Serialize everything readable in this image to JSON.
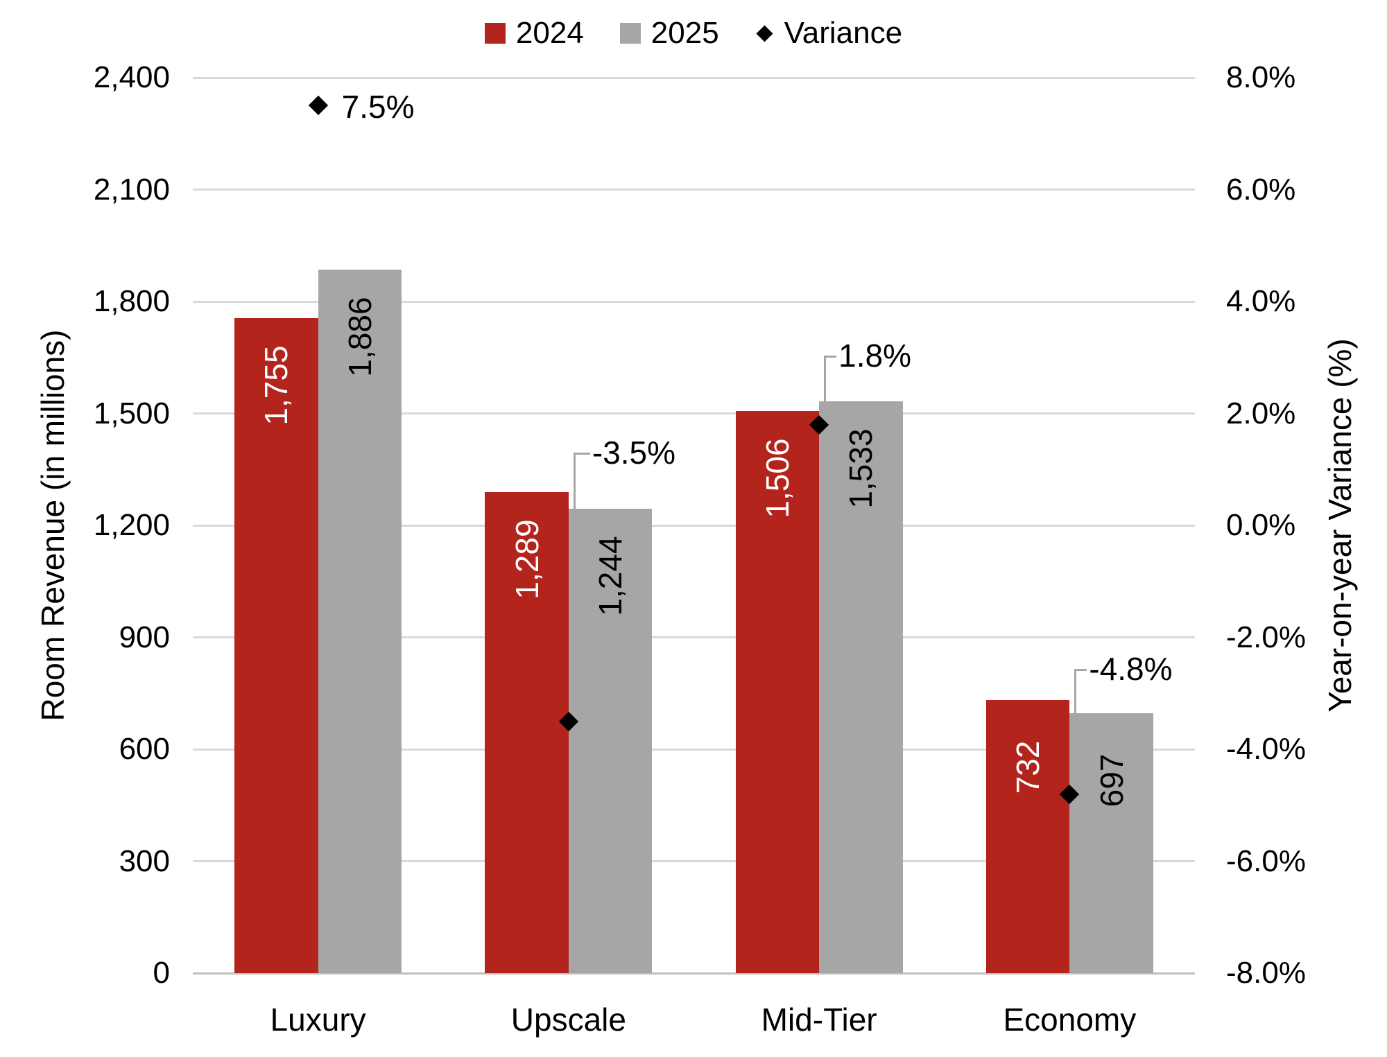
{
  "chart_data": {
    "type": "combo",
    "categories": [
      "Luxury",
      "Upscale",
      "Mid-Tier",
      "Economy"
    ],
    "series": [
      {
        "name": "2024",
        "type": "bar",
        "axis": "left",
        "color": "#B2241C",
        "values": [
          1755,
          1289,
          1506,
          732
        ],
        "labels": [
          "1,755",
          "1,289",
          "1,506",
          "732"
        ],
        "label_color": "#FFFFFF"
      },
      {
        "name": "2025",
        "type": "bar",
        "axis": "left",
        "color": "#A6A6A6",
        "values": [
          1886,
          1244,
          1533,
          697
        ],
        "labels": [
          "1,886",
          "1,244",
          "1,533",
          "697"
        ],
        "label_color": "#000000"
      },
      {
        "name": "Variance",
        "type": "scatter",
        "marker": "diamond",
        "axis": "right",
        "color": "#000000",
        "values": [
          7.5,
          -3.5,
          1.8,
          -4.8
        ],
        "labels": [
          "7.5%",
          "-3.5%",
          "1.8%",
          "-4.8%"
        ]
      }
    ],
    "left_axis": {
      "title": "Room Revenue (in millions)",
      "min": 0,
      "max": 2400,
      "step": 300,
      "ticks": [
        "0",
        "300",
        "600",
        "900",
        "1,200",
        "1,500",
        "1,800",
        "2,100",
        "2,400"
      ]
    },
    "right_axis": {
      "title": "Year-on-year Variance (%)",
      "min": -8,
      "max": 8,
      "step": 2,
      "ticks": [
        "-8.0%",
        "-6.0%",
        "-4.0%",
        "-2.0%",
        "0.0%",
        "2.0%",
        "4.0%",
        "6.0%",
        "8.0%"
      ]
    },
    "legend": [
      {
        "label": "2024",
        "swatch": "square",
        "color": "#B2241C"
      },
      {
        "label": "2025",
        "swatch": "square",
        "color": "#A6A6A6"
      },
      {
        "label": "Variance",
        "swatch": "diamond",
        "color": "#000000"
      }
    ],
    "grid": true,
    "colors": {
      "gridline": "#D9D9D9",
      "axis_line": "#BFBFBF",
      "leader_line": "#A6A6A6",
      "text": "#000000",
      "background": "#FFFFFF"
    }
  }
}
